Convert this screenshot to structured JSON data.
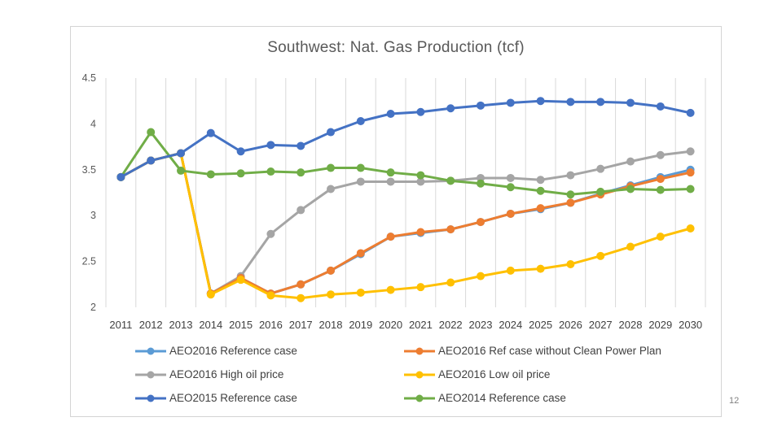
{
  "chart_data": {
    "type": "line",
    "title": "Southwest: Nat. Gas Production (tcf)",
    "xlabel": "",
    "ylabel": "",
    "x": [
      "2011",
      "2012",
      "2013",
      "2014",
      "2015",
      "2016",
      "2017",
      "2018",
      "2019",
      "2020",
      "2021",
      "2022",
      "2023",
      "2024",
      "2025",
      "2026",
      "2027",
      "2028",
      "2029",
      "2030"
    ],
    "ylim": [
      2,
      4.5
    ],
    "yticks": [
      2,
      2.5,
      3,
      3.5,
      4,
      4.5
    ],
    "ytick_labels": [
      "2",
      "2.5",
      "3",
      "3.5",
      "4",
      "4.5"
    ],
    "grid": "vertical",
    "legend_position": "bottom",
    "series": [
      {
        "name": "AEO2016 Reference case",
        "color": "#5b9bd5",
        "values": [
          3.42,
          3.6,
          3.68,
          2.15,
          2.32,
          2.15,
          2.25,
          2.4,
          2.58,
          2.77,
          2.81,
          2.85,
          2.93,
          3.02,
          3.07,
          3.14,
          3.24,
          3.33,
          3.42,
          3.5
        ]
      },
      {
        "name": "AEO2016 Ref case without Clean Power Plan",
        "color": "#ed7d31",
        "values": [
          3.42,
          3.6,
          3.68,
          2.15,
          2.32,
          2.15,
          2.25,
          2.4,
          2.59,
          2.77,
          2.82,
          2.85,
          2.93,
          3.02,
          3.08,
          3.14,
          3.23,
          3.32,
          3.4,
          3.47
        ]
      },
      {
        "name": "AEO2016 High oil price",
        "color": "#a5a5a5",
        "values": [
          3.42,
          3.6,
          3.68,
          2.15,
          2.34,
          2.8,
          3.06,
          3.29,
          3.37,
          3.37,
          3.37,
          3.38,
          3.41,
          3.41,
          3.39,
          3.44,
          3.51,
          3.59,
          3.66,
          3.7
        ]
      },
      {
        "name": "AEO2016 Low oil price",
        "color": "#ffc000",
        "values": [
          3.42,
          3.6,
          3.68,
          2.14,
          2.3,
          2.13,
          2.1,
          2.14,
          2.16,
          2.19,
          2.22,
          2.27,
          2.34,
          2.4,
          2.42,
          2.47,
          2.56,
          2.66,
          2.77,
          2.86
        ]
      },
      {
        "name": "AEO2015 Reference case",
        "color": "#4472c4",
        "values": [
          3.42,
          3.6,
          3.68,
          3.9,
          3.7,
          3.77,
          3.76,
          3.91,
          4.03,
          4.11,
          4.13,
          4.17,
          4.2,
          4.23,
          4.25,
          4.24,
          4.24,
          4.23,
          4.19,
          4.12
        ]
      },
      {
        "name": "AEO2014 Reference case",
        "color": "#70ad47",
        "values": [
          3.42,
          3.91,
          3.49,
          3.45,
          3.46,
          3.48,
          3.47,
          3.52,
          3.52,
          3.47,
          3.44,
          3.38,
          3.35,
          3.31,
          3.27,
          3.23,
          3.26,
          3.29,
          3.28,
          3.29
        ]
      }
    ]
  },
  "page_number": "12"
}
